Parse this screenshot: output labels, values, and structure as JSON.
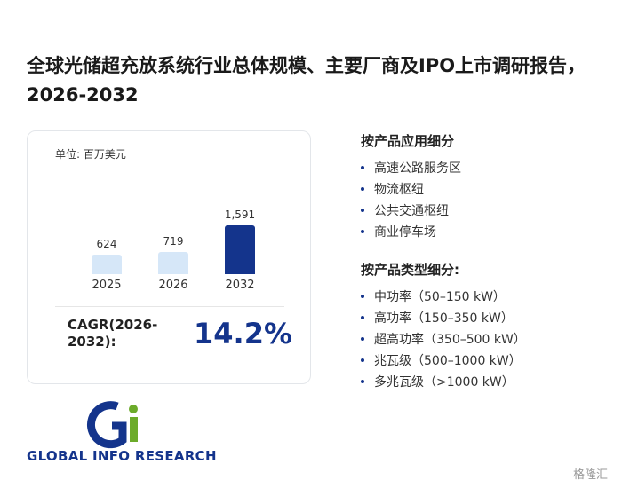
{
  "title": "全球光储超充放系统行业总体规模、主要厂商及IPO上市调研报告，2026-2032",
  "chart_data": {
    "type": "bar",
    "unit_label": "单位: 百万美元",
    "categories": [
      "2025",
      "2026",
      "2032"
    ],
    "values": [
      624,
      719,
      1591
    ],
    "value_labels": [
      "624",
      "719",
      "1,591"
    ],
    "colors": [
      "#d6e7f8",
      "#d6e7f8",
      "#14348c"
    ]
  },
  "cagr": {
    "label": "CAGR(2026-2032):",
    "value": "14.2%"
  },
  "segments": [
    {
      "heading": "按产品应用细分",
      "items": [
        "高速公路服务区",
        "物流枢纽",
        "公共交通枢纽",
        "商业停车场"
      ]
    },
    {
      "heading": "按产品类型细分:",
      "items": [
        "中功率（50–150 kW）",
        "高功率（150–350 kW）",
        "超高功率（350–500 kW）",
        "兆瓦级（500–1000 kW）",
        "多兆瓦级（>1000 kW）"
      ]
    }
  ],
  "logo": {
    "brand": "GLOBAL INFO RESEARCH"
  },
  "corner_brand": "格隆汇"
}
